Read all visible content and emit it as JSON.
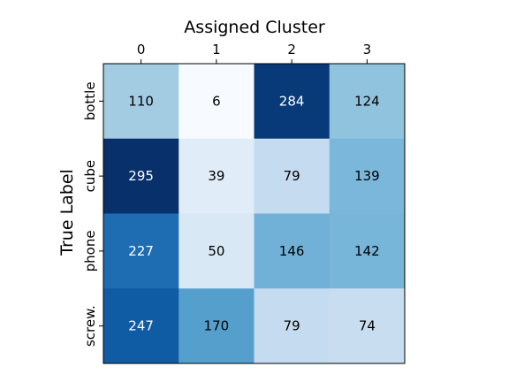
{
  "chart_data": {
    "type": "heatmap",
    "xlabel": "Assigned Cluster",
    "ylabel": "True Label",
    "x_categories": [
      "0",
      "1",
      "2",
      "3"
    ],
    "y_categories": [
      "bottle",
      "cube",
      "phone",
      "screw."
    ],
    "values": [
      [
        110,
        6,
        284,
        124
      ],
      [
        295,
        39,
        79,
        139
      ],
      [
        227,
        50,
        146,
        142
      ],
      [
        247,
        170,
        79,
        74
      ]
    ],
    "colormap": "Blues",
    "x_axis_position": "top",
    "grid": false
  }
}
